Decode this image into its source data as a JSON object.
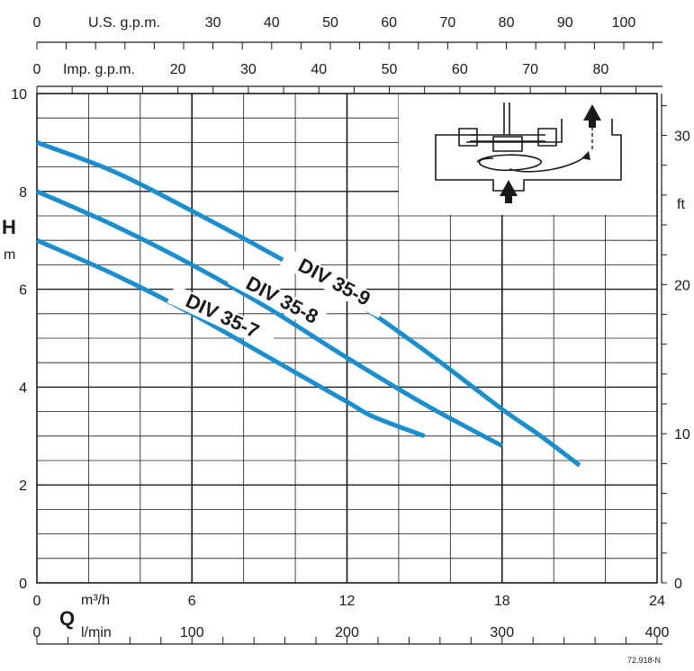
{
  "chart_data": {
    "type": "line",
    "title": "",
    "code": "72.918-N",
    "line_color": "#1a8fd0",
    "grid": true,
    "xlabel": {
      "symbol": "Q",
      "unit": "m³/h"
    },
    "xlim": [
      0,
      24
    ],
    "x_ticks": [
      "0",
      "6",
      "12",
      "18",
      "24"
    ],
    "ylabel": {
      "symbol": "H",
      "unit": "m"
    },
    "ylim": [
      0,
      10
    ],
    "y_ticks": [
      "0",
      "2",
      "4",
      "6",
      "8",
      "10"
    ],
    "secondary_axes": {
      "us_gpm": {
        "label": "U.S. g.p.m.",
        "ticks": [
          "0",
          "30",
          "40",
          "50",
          "60",
          "70",
          "80",
          "90",
          "100"
        ]
      },
      "imp_gpm": {
        "label": "Imp. g.p.m.",
        "ticks": [
          "0",
          "20",
          "30",
          "40",
          "50",
          "60",
          "70",
          "80"
        ]
      },
      "l_min": {
        "unit": "l/min",
        "ticks": [
          "0",
          "100",
          "200",
          "300",
          "400"
        ]
      },
      "ft": {
        "unit": "ft",
        "ticks": [
          "0",
          "10",
          "20",
          "30"
        ]
      }
    },
    "series": [
      {
        "name": "DIV 35-9",
        "x": [
          0,
          3,
          6,
          9,
          12,
          15,
          18,
          19.5,
          21
        ],
        "y": [
          9.0,
          8.4,
          7.6,
          6.75,
          5.85,
          4.75,
          3.55,
          3.0,
          2.4
        ]
      },
      {
        "name": "DIV 35-8",
        "x": [
          0,
          3,
          6,
          9,
          12,
          15,
          18
        ],
        "y": [
          8.0,
          7.3,
          6.5,
          5.6,
          4.6,
          3.65,
          2.8
        ]
      },
      {
        "name": "DIV 35-7",
        "x": [
          0,
          3,
          6,
          9,
          12,
          13,
          15
        ],
        "y": [
          7.0,
          6.3,
          5.5,
          4.6,
          3.7,
          3.4,
          3.0
        ]
      }
    ]
  }
}
